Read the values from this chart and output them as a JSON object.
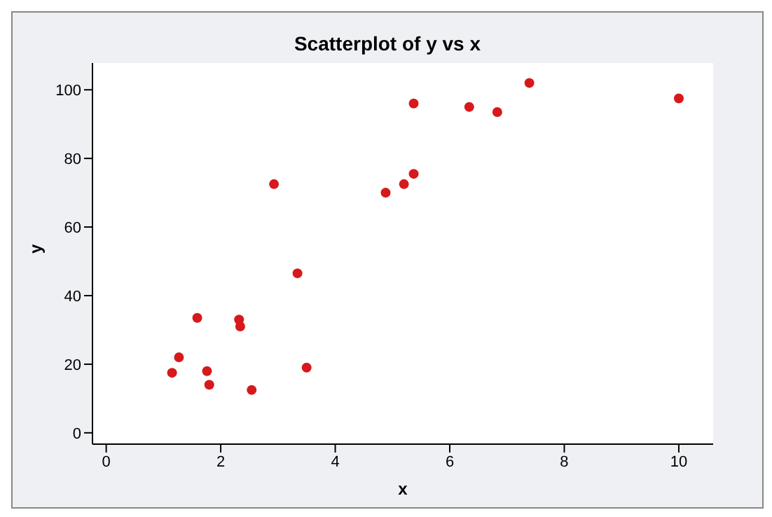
{
  "chart_data": {
    "type": "scatter",
    "title": "Scatterplot of y vs x",
    "xlabel": "x",
    "ylabel": "y",
    "x": [
      1.15,
      1.27,
      1.59,
      1.76,
      1.8,
      2.32,
      2.34,
      2.54,
      2.93,
      3.34,
      3.5,
      4.88,
      5.2,
      5.37,
      5.37,
      6.34,
      6.83,
      7.39,
      10.0
    ],
    "series": [
      {
        "color": "#d7191c",
        "values": [
          17.5,
          22,
          33.5,
          18,
          14,
          33,
          31,
          12.5,
          72.5,
          46.5,
          19,
          70,
          72.5,
          75.5,
          96,
          95,
          93.5,
          102,
          97.5
        ]
      }
    ],
    "xlim": [
      -0.24,
      10.6
    ],
    "xticks": [
      0,
      2,
      4,
      6,
      8,
      10
    ],
    "ylim": [
      -3.3,
      107.8
    ],
    "yticks": [
      0,
      20,
      40,
      60,
      80,
      100
    ],
    "grid": false,
    "legend": false,
    "marker": "circle"
  }
}
